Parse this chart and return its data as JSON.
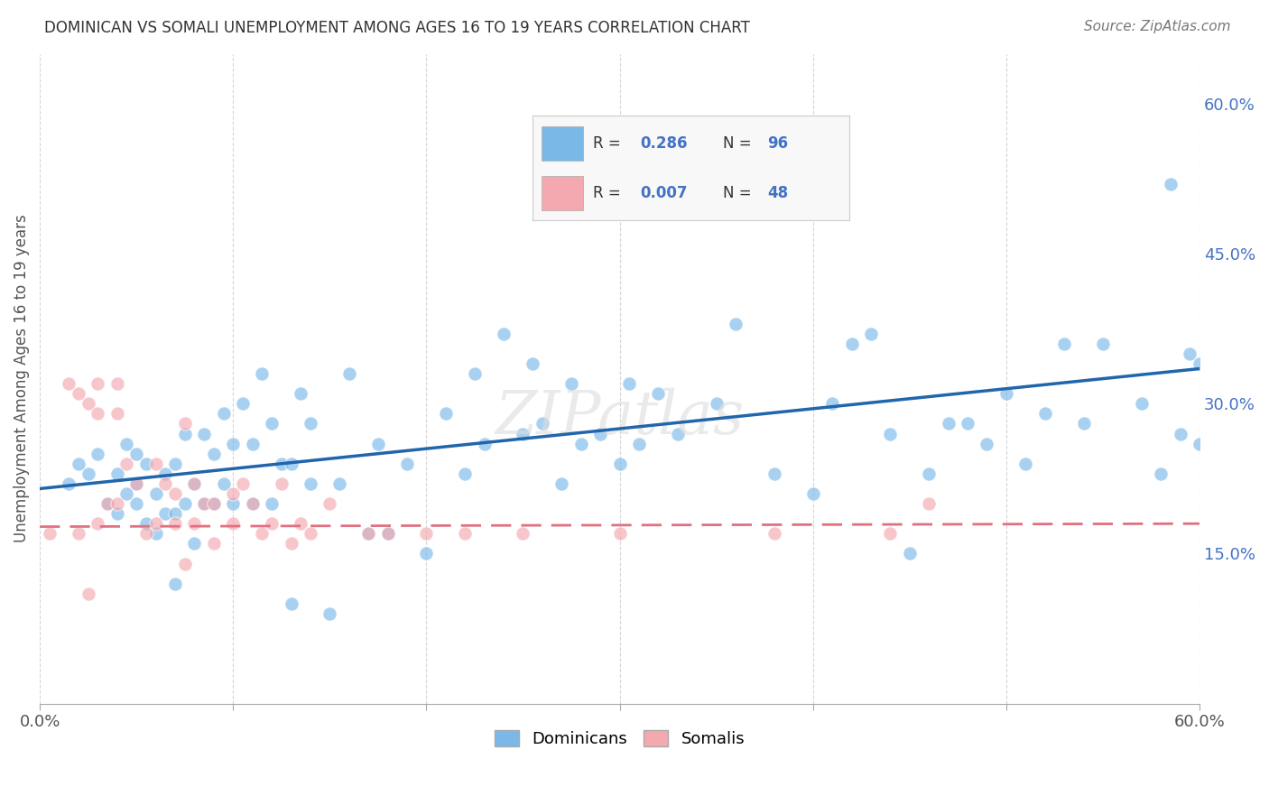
{
  "title": "DOMINICAN VS SOMALI UNEMPLOYMENT AMONG AGES 16 TO 19 YEARS CORRELATION CHART",
  "source": "Source: ZipAtlas.com",
  "xlabel": "",
  "ylabel": "Unemployment Among Ages 16 to 19 years",
  "xlim": [
    0.0,
    0.6
  ],
  "ylim": [
    0.0,
    0.65
  ],
  "xtick_positions": [
    0.0,
    0.1,
    0.2,
    0.3,
    0.4,
    0.5,
    0.6
  ],
  "xticklabels": [
    "0.0%",
    "",
    "",
    "",
    "",
    "",
    "60.0%"
  ],
  "yticks_right": [
    0.15,
    0.3,
    0.45,
    0.6
  ],
  "ytick_right_labels": [
    "15.0%",
    "30.0%",
    "45.0%",
    "60.0%"
  ],
  "dominican_color": "#7ab8e8",
  "somali_color": "#f4a8b0",
  "dominican_line_color": "#2166ac",
  "somali_line_color": "#e07080",
  "background_color": "#ffffff",
  "R_dominican": 0.286,
  "N_dominican": 96,
  "R_somali": 0.007,
  "N_somali": 48,
  "dominican_x": [
    0.015,
    0.02,
    0.025,
    0.03,
    0.035,
    0.04,
    0.04,
    0.045,
    0.045,
    0.05,
    0.05,
    0.05,
    0.055,
    0.055,
    0.06,
    0.06,
    0.065,
    0.065,
    0.07,
    0.07,
    0.07,
    0.075,
    0.075,
    0.08,
    0.08,
    0.085,
    0.085,
    0.09,
    0.09,
    0.095,
    0.095,
    0.1,
    0.1,
    0.105,
    0.11,
    0.11,
    0.115,
    0.12,
    0.12,
    0.125,
    0.13,
    0.13,
    0.135,
    0.14,
    0.14,
    0.15,
    0.155,
    0.16,
    0.17,
    0.175,
    0.18,
    0.19,
    0.2,
    0.21,
    0.22,
    0.225,
    0.23,
    0.24,
    0.25,
    0.255,
    0.26,
    0.27,
    0.275,
    0.28,
    0.29,
    0.3,
    0.305,
    0.31,
    0.32,
    0.33,
    0.35,
    0.36,
    0.38,
    0.4,
    0.41,
    0.42,
    0.43,
    0.44,
    0.45,
    0.46,
    0.47,
    0.48,
    0.49,
    0.5,
    0.51,
    0.52,
    0.53,
    0.54,
    0.55,
    0.57,
    0.58,
    0.585,
    0.59,
    0.595,
    0.6,
    0.6
  ],
  "dominican_y": [
    0.22,
    0.24,
    0.23,
    0.25,
    0.2,
    0.19,
    0.23,
    0.21,
    0.26,
    0.2,
    0.22,
    0.25,
    0.18,
    0.24,
    0.17,
    0.21,
    0.19,
    0.23,
    0.12,
    0.19,
    0.24,
    0.2,
    0.27,
    0.16,
    0.22,
    0.2,
    0.27,
    0.2,
    0.25,
    0.22,
    0.29,
    0.2,
    0.26,
    0.3,
    0.2,
    0.26,
    0.33,
    0.2,
    0.28,
    0.24,
    0.1,
    0.24,
    0.31,
    0.22,
    0.28,
    0.09,
    0.22,
    0.33,
    0.17,
    0.26,
    0.17,
    0.24,
    0.15,
    0.29,
    0.23,
    0.33,
    0.26,
    0.37,
    0.27,
    0.34,
    0.28,
    0.22,
    0.32,
    0.26,
    0.27,
    0.24,
    0.32,
    0.26,
    0.31,
    0.27,
    0.3,
    0.38,
    0.23,
    0.21,
    0.3,
    0.36,
    0.37,
    0.27,
    0.15,
    0.23,
    0.28,
    0.28,
    0.26,
    0.31,
    0.24,
    0.29,
    0.36,
    0.28,
    0.36,
    0.3,
    0.23,
    0.52,
    0.27,
    0.35,
    0.34,
    0.26
  ],
  "somali_x": [
    0.005,
    0.015,
    0.02,
    0.02,
    0.025,
    0.025,
    0.03,
    0.03,
    0.03,
    0.035,
    0.04,
    0.04,
    0.04,
    0.045,
    0.05,
    0.055,
    0.06,
    0.06,
    0.065,
    0.07,
    0.07,
    0.075,
    0.075,
    0.08,
    0.08,
    0.085,
    0.09,
    0.09,
    0.1,
    0.1,
    0.105,
    0.11,
    0.115,
    0.12,
    0.125,
    0.13,
    0.135,
    0.14,
    0.15,
    0.17,
    0.18,
    0.2,
    0.22,
    0.25,
    0.3,
    0.38,
    0.44,
    0.46
  ],
  "somali_y": [
    0.17,
    0.32,
    0.31,
    0.17,
    0.3,
    0.11,
    0.32,
    0.29,
    0.18,
    0.2,
    0.29,
    0.32,
    0.2,
    0.24,
    0.22,
    0.17,
    0.18,
    0.24,
    0.22,
    0.21,
    0.18,
    0.14,
    0.28,
    0.22,
    0.18,
    0.2,
    0.2,
    0.16,
    0.21,
    0.18,
    0.22,
    0.2,
    0.17,
    0.18,
    0.22,
    0.16,
    0.18,
    0.17,
    0.2,
    0.17,
    0.17,
    0.17,
    0.17,
    0.17,
    0.17,
    0.17,
    0.17,
    0.2
  ],
  "dominican_line_x0": 0.0,
  "dominican_line_y0": 0.215,
  "dominican_line_x1": 0.6,
  "dominican_line_y1": 0.335,
  "somali_line_x0": 0.0,
  "somali_line_y0": 0.177,
  "somali_line_x1": 0.6,
  "somali_line_y1": 0.18
}
